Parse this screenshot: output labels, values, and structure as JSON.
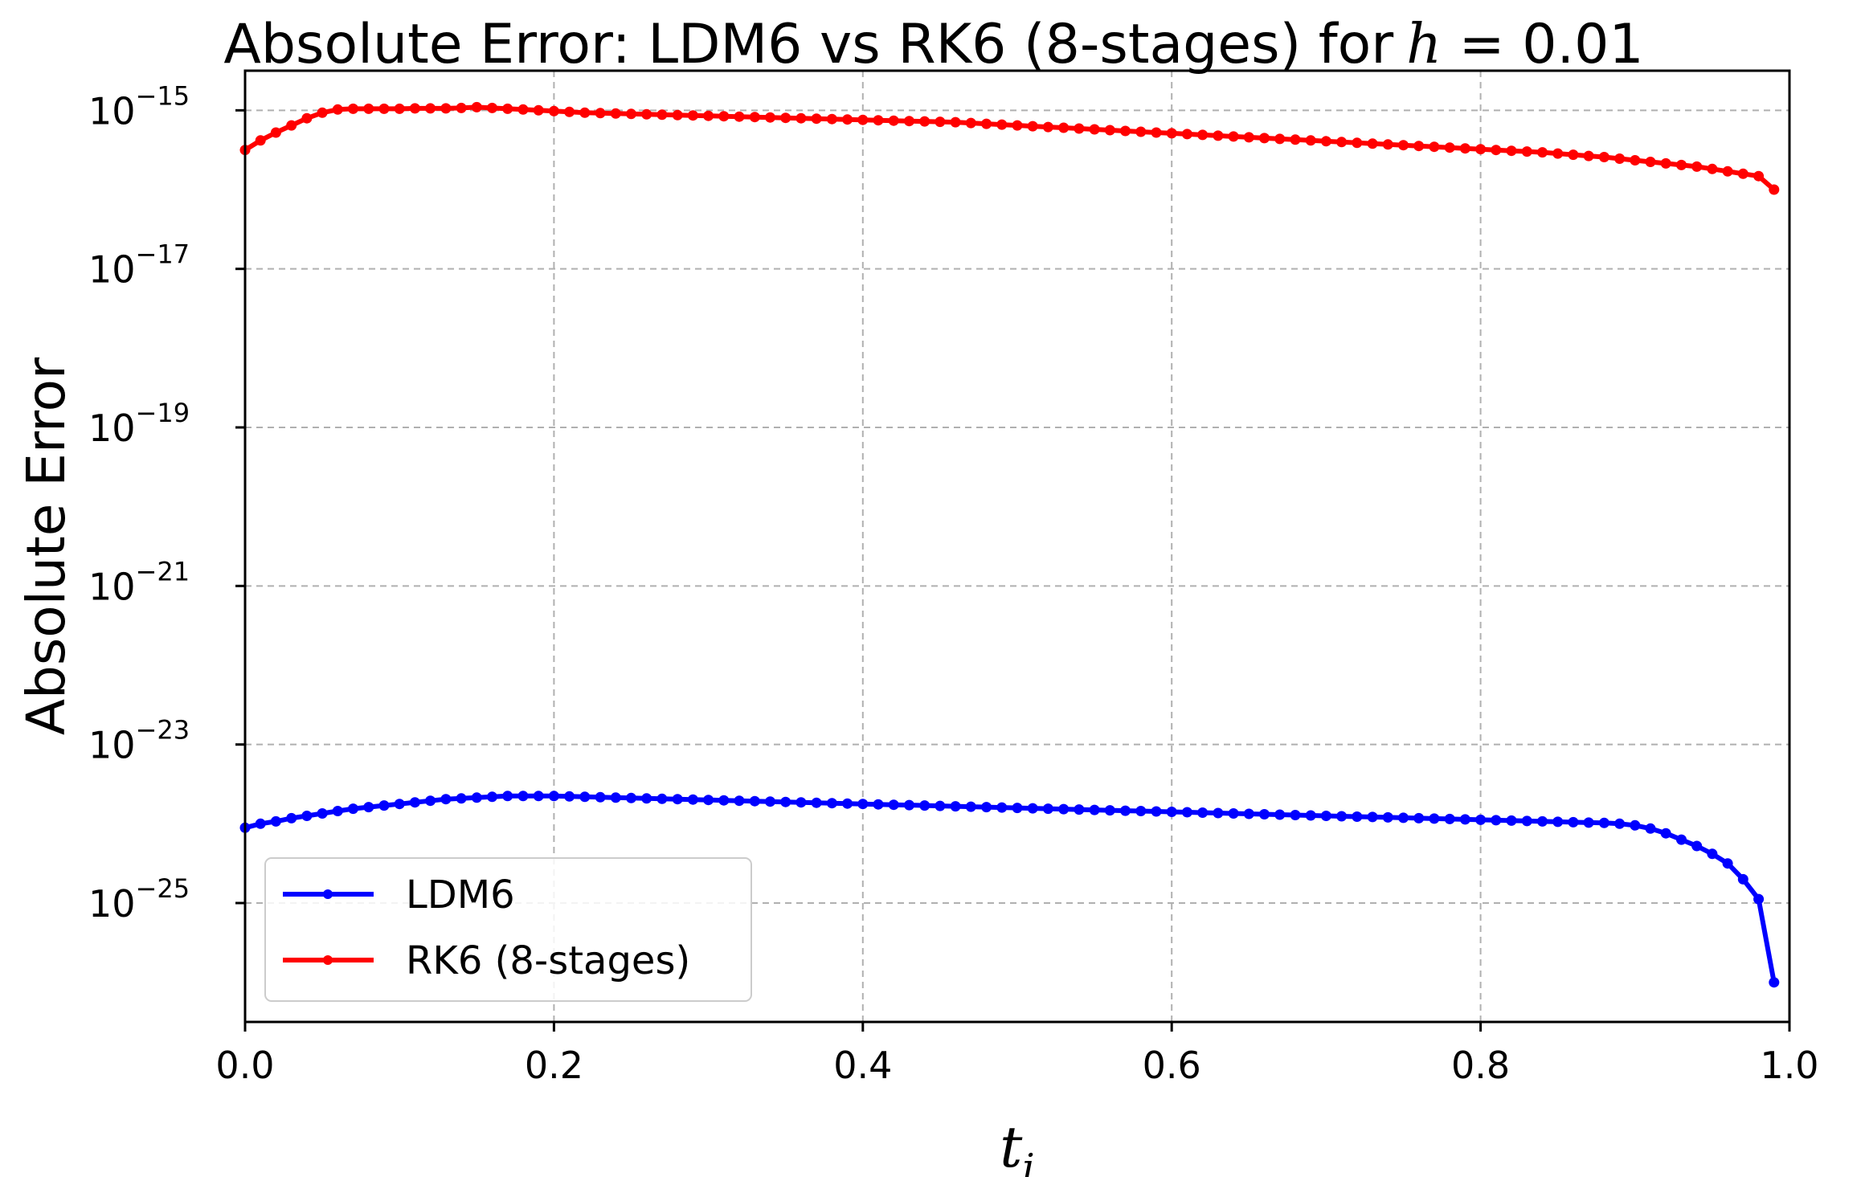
{
  "chart_data": {
    "type": "line",
    "title": "Absolute Error: LDM6 vs RK6 (8-stages) for",
    "title_math_var": "h",
    "title_math_rest": " = 0.01",
    "xlabel_main": "t",
    "xlabel_sub": "i",
    "ylabel": "Absolute Error",
    "yscale": "log",
    "xlim": [
      0.0,
      1.0
    ],
    "ylim_exp": [
      -26.5,
      -14.5
    ],
    "xticks": [
      "0.0",
      "0.2",
      "0.4",
      "0.6",
      "0.8",
      "1.0"
    ],
    "xtick_values": [
      0.0,
      0.2,
      0.4,
      0.6,
      0.8,
      1.0
    ],
    "ytick_base": "10",
    "yticks_exp": [
      "−15",
      "−17",
      "−19",
      "−21",
      "−23",
      "−25"
    ],
    "ytick_values_exp": [
      -15,
      -17,
      -19,
      -21,
      -23,
      -25
    ],
    "grid": true,
    "legend_placement": "lower-left",
    "legend": [
      "LDM6",
      "RK6 (8-stages)"
    ],
    "colors": {
      "LDM6": "#0000ff",
      "RK6": "#ff0000"
    },
    "series": [
      {
        "name": "LDM6",
        "color": "#0000ff",
        "x_start": 0.0,
        "x_step": 0.01,
        "log10_y": [
          -24.05,
          -24.0,
          -23.97,
          -23.93,
          -23.9,
          -23.87,
          -23.84,
          -23.81,
          -23.79,
          -23.77,
          -23.75,
          -23.73,
          -23.71,
          -23.69,
          -23.68,
          -23.67,
          -23.66,
          -23.65,
          -23.65,
          -23.65,
          -23.65,
          -23.655,
          -23.66,
          -23.665,
          -23.67,
          -23.675,
          -23.68,
          -23.685,
          -23.69,
          -23.695,
          -23.7,
          -23.705,
          -23.71,
          -23.715,
          -23.72,
          -23.725,
          -23.73,
          -23.735,
          -23.74,
          -23.745,
          -23.75,
          -23.755,
          -23.76,
          -23.765,
          -23.77,
          -23.775,
          -23.78,
          -23.785,
          -23.79,
          -23.795,
          -23.8,
          -23.805,
          -23.81,
          -23.815,
          -23.82,
          -23.825,
          -23.83,
          -23.835,
          -23.84,
          -23.845,
          -23.85,
          -23.855,
          -23.86,
          -23.865,
          -23.87,
          -23.875,
          -23.88,
          -23.885,
          -23.89,
          -23.895,
          -23.9,
          -23.905,
          -23.91,
          -23.915,
          -23.92,
          -23.925,
          -23.93,
          -23.935,
          -23.94,
          -23.945,
          -23.95,
          -23.955,
          -23.96,
          -23.965,
          -23.97,
          -23.975,
          -23.98,
          -23.985,
          -23.99,
          -24.0,
          -24.02,
          -24.06,
          -24.12,
          -24.2,
          -24.28,
          -24.38,
          -24.5,
          -24.7,
          -24.95,
          -26.0
        ]
      },
      {
        "name": "RK6 (8-stages)",
        "color": "#ff0000",
        "x_start": 0.0,
        "x_step": 0.01,
        "log10_y": [
          -15.5,
          -15.38,
          -15.28,
          -15.19,
          -15.1,
          -15.03,
          -14.99,
          -14.98,
          -14.98,
          -14.98,
          -14.98,
          -14.975,
          -14.975,
          -14.975,
          -14.97,
          -14.96,
          -14.97,
          -14.98,
          -14.99,
          -15.0,
          -15.01,
          -15.02,
          -15.03,
          -15.035,
          -15.04,
          -15.045,
          -15.05,
          -15.055,
          -15.06,
          -15.065,
          -15.07,
          -15.075,
          -15.08,
          -15.085,
          -15.09,
          -15.095,
          -15.1,
          -15.105,
          -15.11,
          -15.115,
          -15.12,
          -15.125,
          -15.13,
          -15.135,
          -15.14,
          -15.145,
          -15.15,
          -15.16,
          -15.17,
          -15.18,
          -15.19,
          -15.2,
          -15.21,
          -15.22,
          -15.23,
          -15.24,
          -15.25,
          -15.26,
          -15.27,
          -15.28,
          -15.29,
          -15.3,
          -15.31,
          -15.32,
          -15.33,
          -15.34,
          -15.35,
          -15.36,
          -15.37,
          -15.38,
          -15.39,
          -15.4,
          -15.41,
          -15.42,
          -15.43,
          -15.44,
          -15.45,
          -15.46,
          -15.47,
          -15.48,
          -15.49,
          -15.5,
          -15.51,
          -15.52,
          -15.53,
          -15.545,
          -15.56,
          -15.575,
          -15.59,
          -15.61,
          -15.63,
          -15.65,
          -15.67,
          -15.69,
          -15.71,
          -15.74,
          -15.77,
          -15.8,
          -15.83,
          -16.0
        ]
      }
    ]
  }
}
